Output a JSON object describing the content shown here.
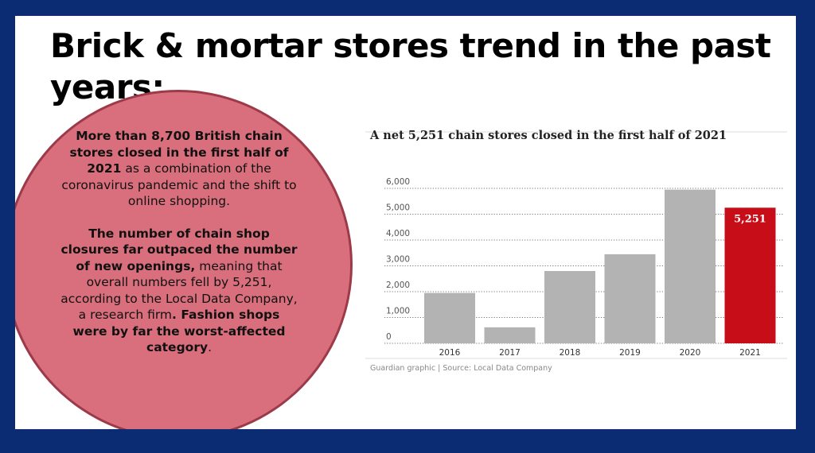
{
  "slide": {
    "title": "Brick & mortar stores trend in the past years:",
    "paragraph1": {
      "bold": "More than 8,700 British chain stores closed in the first half of 2021",
      "normal": " as a combination of the coronavirus pandemic and the shift to online shopping."
    },
    "paragraph2": {
      "bold1": "The number of chain shop closures far outpaced the number of new openings,",
      "normal1": " meaning that overall numbers fell by 5,251, according to the Local Data Company, a research firm",
      "bold2": ". Fashion shops were by far the worst-affected category",
      "normal2": "."
    }
  },
  "chart_data": {
    "type": "bar",
    "title": "A net 5,251 chain stores closed in the first half of 2021",
    "source": "Guardian graphic | Source: Local Data Company",
    "categories": [
      "2016",
      "2017",
      "2018",
      "2019",
      "2020",
      "2021"
    ],
    "values": [
      1950,
      620,
      2800,
      3450,
      5950,
      5251
    ],
    "highlight_index": 5,
    "data_labels": [
      {
        "index": 5,
        "text": "5,251"
      }
    ],
    "yticks": [
      {
        "value": 0,
        "label": "0"
      },
      {
        "value": 1000,
        "label": "1,000"
      },
      {
        "value": 2000,
        "label": "2,000"
      },
      {
        "value": 3000,
        "label": "3,000"
      },
      {
        "value": 4000,
        "label": "4,000"
      },
      {
        "value": 5000,
        "label": "5,000"
      },
      {
        "value": 6000,
        "label": "6,000"
      }
    ],
    "ylim": [
      0,
      6000
    ],
    "grid": true,
    "colors": {
      "bar": "#b3b3b3",
      "highlight": "#c70d17",
      "label": "#ffffff",
      "grid": "#777777"
    }
  }
}
